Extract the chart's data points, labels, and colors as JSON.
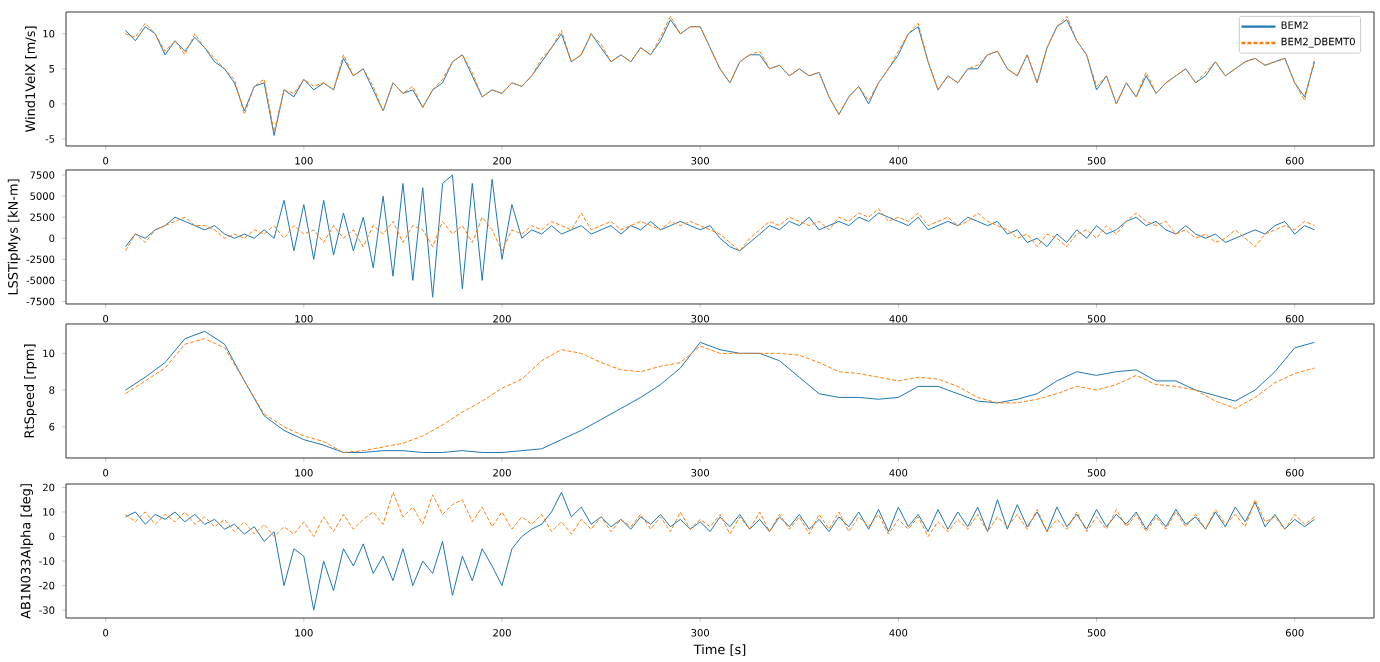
{
  "chart_data": [
    {
      "type": "line",
      "ylabel": "Wind1VelX [m/s]",
      "legend": "top right",
      "x": [
        10,
        15,
        20,
        25,
        30,
        35,
        40,
        45,
        50,
        55,
        60,
        65,
        70,
        75,
        80,
        85,
        90,
        95,
        100,
        105,
        110,
        115,
        120,
        125,
        130,
        135,
        140,
        145,
        150,
        155,
        160,
        165,
        170,
        175,
        180,
        185,
        190,
        195,
        200,
        205,
        210,
        215,
        220,
        225,
        230,
        235,
        240,
        245,
        250,
        255,
        260,
        265,
        270,
        275,
        280,
        285,
        290,
        295,
        300,
        305,
        310,
        315,
        320,
        325,
        330,
        335,
        340,
        345,
        350,
        355,
        360,
        365,
        370,
        375,
        380,
        385,
        390,
        395,
        400,
        405,
        410,
        415,
        420,
        425,
        430,
        435,
        440,
        445,
        450,
        455,
        460,
        465,
        470,
        475,
        480,
        485,
        490,
        495,
        500,
        505,
        510,
        515,
        520,
        525,
        530,
        535,
        540,
        545,
        550,
        555,
        560,
        565,
        570,
        575,
        580,
        585,
        590,
        595,
        600,
        605,
        610
      ],
      "xlim": [
        -20,
        640
      ],
      "xticks": [
        0,
        100,
        200,
        300,
        400,
        500,
        600
      ],
      "ylim": [
        -6,
        13.1
      ],
      "yticks": [
        -5,
        0,
        5,
        10
      ],
      "series": [
        {
          "name": "BEM2",
          "color": "#1f77b4",
          "line_style": "solid",
          "values": [
            10.5,
            9,
            11,
            10,
            7,
            9,
            7.5,
            9.5,
            8,
            6,
            5,
            3,
            -1,
            2.5,
            3,
            -4.5,
            2,
            1,
            3.5,
            2,
            3,
            2,
            6.5,
            4,
            5,
            2,
            -1,
            3,
            1.5,
            2,
            -0.5,
            2,
            3,
            6,
            7,
            4,
            1,
            2,
            1.5,
            3,
            2.5,
            4,
            6,
            8,
            10,
            6,
            7,
            10,
            8,
            6,
            7,
            6,
            8,
            7,
            9,
            12,
            10,
            11,
            11,
            8,
            5,
            3,
            6,
            7,
            7,
            5,
            5.5,
            4,
            5,
            4,
            4.5,
            1,
            -1.5,
            1,
            2.5,
            0,
            3,
            5,
            7,
            10,
            11,
            6,
            2,
            4,
            3,
            5,
            5,
            7,
            7.5,
            5,
            4,
            7,
            3,
            8,
            11,
            12,
            9,
            7,
            2,
            4,
            0,
            3,
            1,
            4,
            1.5,
            3,
            4,
            5,
            3,
            4,
            6,
            4,
            5,
            6,
            6.5,
            5.5,
            6,
            6.5,
            3,
            1,
            6
          ]
        },
        {
          "name": "BEM2_DBEMT0",
          "color": "#ff7f0e",
          "line_style": "dashed",
          "values": [
            10,
            9.5,
            11.5,
            10,
            7.5,
            9,
            7,
            10,
            8,
            6.5,
            5,
            3.5,
            -1.5,
            2.5,
            3.5,
            -4,
            2,
            1.5,
            3.5,
            2.5,
            3,
            2,
            7,
            4,
            5,
            2.5,
            -1,
            3,
            1.5,
            2.5,
            -0.5,
            2,
            3.5,
            6,
            7,
            4.5,
            1,
            2,
            1.5,
            3,
            2.5,
            4,
            6.5,
            8,
            10.5,
            6,
            7,
            10,
            8.5,
            6,
            7,
            6,
            8,
            7,
            9.5,
            12.5,
            10,
            11,
            11,
            8,
            5,
            3,
            6,
            7,
            7.5,
            5,
            5.5,
            4,
            5,
            4,
            4.5,
            1,
            -1.5,
            1,
            2.5,
            0.5,
            3,
            5,
            7.5,
            10,
            11.5,
            6,
            2,
            4,
            3,
            5,
            5.5,
            7,
            7.5,
            5,
            4,
            7,
            3,
            8,
            11,
            12.5,
            9,
            7,
            2.5,
            4,
            0,
            3,
            1,
            4.5,
            1.5,
            3,
            4,
            5,
            3,
            4.5,
            6,
            4,
            5,
            6,
            6.5,
            5.5,
            6,
            6.5,
            3,
            0.5,
            6.5
          ]
        }
      ]
    },
    {
      "type": "line",
      "ylabel": "LSSTipMys [kN-m]",
      "x": [
        10,
        15,
        20,
        25,
        30,
        35,
        40,
        45,
        50,
        55,
        60,
        65,
        70,
        75,
        80,
        85,
        90,
        95,
        100,
        105,
        110,
        115,
        120,
        125,
        130,
        135,
        140,
        145,
        150,
        155,
        160,
        165,
        170,
        175,
        180,
        185,
        190,
        195,
        200,
        205,
        210,
        215,
        220,
        225,
        230,
        235,
        240,
        245,
        250,
        255,
        260,
        265,
        270,
        275,
        280,
        285,
        290,
        295,
        300,
        305,
        310,
        315,
        320,
        325,
        330,
        335,
        340,
        345,
        350,
        355,
        360,
        365,
        370,
        375,
        380,
        385,
        390,
        395,
        400,
        405,
        410,
        415,
        420,
        425,
        430,
        435,
        440,
        445,
        450,
        455,
        460,
        465,
        470,
        475,
        480,
        485,
        490,
        495,
        500,
        505,
        510,
        515,
        520,
        525,
        530,
        535,
        540,
        545,
        550,
        555,
        560,
        565,
        570,
        575,
        580,
        585,
        590,
        595,
        600,
        605,
        610
      ],
      "xlim": [
        -20,
        640
      ],
      "xticks": [
        0,
        100,
        200,
        300,
        400,
        500,
        600
      ],
      "ylim": [
        -7800,
        8100
      ],
      "yticks": [
        -7500,
        -5000,
        -2500,
        0,
        2500,
        5000,
        7500
      ],
      "series": [
        {
          "color": "#1f77b4",
          "line_style": "solid",
          "values": [
            -1000,
            500,
            0,
            1000,
            1500,
            2500,
            2000,
            1500,
            1000,
            1500,
            500,
            0,
            500,
            0,
            1000,
            0,
            4500,
            -1500,
            4000,
            -2500,
            4500,
            -2000,
            3000,
            -1500,
            2500,
            -3500,
            5000,
            -4500,
            6500,
            -5000,
            6000,
            -7000,
            6500,
            7500,
            -6000,
            6500,
            -5000,
            7000,
            -2500,
            4000,
            0,
            1000,
            500,
            1500,
            500,
            1000,
            1500,
            500,
            1000,
            1500,
            500,
            1500,
            1000,
            2000,
            1000,
            1500,
            2000,
            1500,
            1000,
            1500,
            0,
            -1000,
            -1500,
            -500,
            500,
            1500,
            1000,
            2000,
            1500,
            2500,
            1000,
            1500,
            2000,
            1500,
            2500,
            2000,
            3000,
            2500,
            2000,
            1500,
            2500,
            1000,
            1500,
            2000,
            1500,
            2500,
            2000,
            1500,
            2000,
            500,
            1000,
            -500,
            0,
            -1000,
            500,
            -500,
            1000,
            0,
            1500,
            500,
            1000,
            2000,
            2500,
            1500,
            2000,
            1000,
            500,
            1500,
            500,
            0,
            500,
            -500,
            0,
            500,
            1000,
            500,
            1500,
            2000,
            500,
            1500,
            1000
          ]
        },
        {
          "color": "#ff7f0e",
          "line_style": "dashed",
          "values": [
            -1500,
            500,
            -500,
            1000,
            1500,
            2000,
            2500,
            1500,
            1500,
            1000,
            0,
            500,
            0,
            1000,
            500,
            1500,
            0,
            1500,
            500,
            1000,
            -500,
            1500,
            0,
            1000,
            -1000,
            1500,
            500,
            2000,
            -500,
            1500,
            1000,
            -1000,
            2000,
            500,
            1500,
            -500,
            2500,
            1000,
            -1500,
            1000,
            500,
            1500,
            1000,
            2000,
            1500,
            1000,
            3000,
            1000,
            1500,
            2000,
            1000,
            1500,
            2000,
            1500,
            1000,
            2000,
            1500,
            2000,
            1500,
            1000,
            500,
            -500,
            -1500,
            0,
            1000,
            2000,
            1500,
            2500,
            2000,
            1500,
            2000,
            1000,
            2500,
            2000,
            3000,
            2500,
            3500,
            2000,
            2500,
            2000,
            3000,
            1500,
            2000,
            2500,
            1500,
            2000,
            3000,
            2000,
            1500,
            1000,
            0,
            500,
            -1000,
            500,
            0,
            -1000,
            500,
            1000,
            0,
            1500,
            500,
            2000,
            3000,
            2000,
            1500,
            2000,
            500,
            1000,
            0,
            500,
            -500,
            0,
            1000,
            0,
            -1000,
            500,
            1000,
            1500,
            1000,
            2000,
            1500
          ]
        }
      ]
    },
    {
      "type": "line",
      "ylabel": "RtSpeed [rpm]",
      "x": [
        10,
        20,
        30,
        40,
        50,
        60,
        70,
        80,
        90,
        100,
        110,
        120,
        130,
        140,
        150,
        160,
        170,
        180,
        190,
        200,
        210,
        220,
        230,
        240,
        250,
        260,
        270,
        280,
        290,
        300,
        310,
        320,
        330,
        340,
        350,
        360,
        370,
        380,
        390,
        400,
        410,
        420,
        430,
        440,
        450,
        460,
        470,
        480,
        490,
        500,
        510,
        520,
        530,
        540,
        550,
        560,
        570,
        580,
        590,
        600,
        610
      ],
      "xlim": [
        -20,
        640
      ],
      "xticks": [
        0,
        100,
        200,
        300,
        400,
        500,
        600
      ],
      "ylim": [
        4.3,
        11.6
      ],
      "yticks": [
        6,
        8,
        10
      ],
      "series": [
        {
          "color": "#1f77b4",
          "line_style": "solid",
          "values": [
            8.0,
            8.7,
            9.5,
            10.8,
            11.2,
            10.5,
            8.5,
            6.6,
            5.8,
            5.3,
            5.0,
            4.6,
            4.6,
            4.7,
            4.7,
            4.6,
            4.6,
            4.7,
            4.6,
            4.6,
            4.7,
            4.8,
            5.3,
            5.8,
            6.4,
            7.0,
            7.6,
            8.3,
            9.2,
            10.6,
            10.2,
            10.0,
            10.0,
            9.6,
            8.7,
            7.8,
            7.6,
            7.6,
            7.5,
            7.6,
            8.2,
            8.2,
            7.8,
            7.4,
            7.3,
            7.5,
            7.8,
            8.5,
            9.0,
            8.8,
            9.0,
            9.1,
            8.5,
            8.5,
            8.0,
            7.7,
            7.4,
            8.0,
            9.0,
            10.3,
            10.6
          ]
        },
        {
          "color": "#ff7f0e",
          "line_style": "dashed",
          "values": [
            7.8,
            8.5,
            9.2,
            10.5,
            10.8,
            10.3,
            8.5,
            6.7,
            6.0,
            5.5,
            5.2,
            4.6,
            4.7,
            4.9,
            5.1,
            5.5,
            6.1,
            6.8,
            7.4,
            8.1,
            8.6,
            9.6,
            10.2,
            10.0,
            9.5,
            9.1,
            9.0,
            9.3,
            9.5,
            10.4,
            10.0,
            10.0,
            10.0,
            10.0,
            9.9,
            9.5,
            9.0,
            8.9,
            8.7,
            8.5,
            8.7,
            8.6,
            8.2,
            7.6,
            7.3,
            7.3,
            7.5,
            7.8,
            8.2,
            8.0,
            8.3,
            8.8,
            8.3,
            8.2,
            8.0,
            7.4,
            7.0,
            7.6,
            8.4,
            8.9,
            9.2
          ]
        }
      ]
    },
    {
      "type": "line",
      "ylabel": "AB1N033Alpha [deg]",
      "xlabel": "Time [s]",
      "x": [
        10,
        15,
        20,
        25,
        30,
        35,
        40,
        45,
        50,
        55,
        60,
        65,
        70,
        75,
        80,
        85,
        90,
        95,
        100,
        105,
        110,
        115,
        120,
        125,
        130,
        135,
        140,
        145,
        150,
        155,
        160,
        165,
        170,
        175,
        180,
        185,
        190,
        195,
        200,
        205,
        210,
        215,
        220,
        225,
        230,
        235,
        240,
        245,
        250,
        255,
        260,
        265,
        270,
        275,
        280,
        285,
        290,
        295,
        300,
        305,
        310,
        315,
        320,
        325,
        330,
        335,
        340,
        345,
        350,
        355,
        360,
        365,
        370,
        375,
        380,
        385,
        390,
        395,
        400,
        405,
        410,
        415,
        420,
        425,
        430,
        435,
        440,
        445,
        450,
        455,
        460,
        465,
        470,
        475,
        480,
        485,
        490,
        495,
        500,
        505,
        510,
        515,
        520,
        525,
        530,
        535,
        540,
        545,
        550,
        555,
        560,
        565,
        570,
        575,
        580,
        585,
        590,
        595,
        600,
        605,
        610
      ],
      "xlim": [
        -20,
        640
      ],
      "xticks": [
        0,
        100,
        200,
        300,
        400,
        500,
        600
      ],
      "ylim": [
        -33.2,
        21.4
      ],
      "yticks": [
        -30,
        -20,
        -10,
        0,
        10,
        20
      ],
      "series": [
        {
          "color": "#1f77b4",
          "line_style": "solid",
          "values": [
            8,
            10,
            5,
            9,
            7,
            10,
            6,
            9,
            5,
            7,
            3,
            5,
            1,
            4,
            -2,
            2,
            -20,
            -5,
            -8,
            -30,
            -10,
            -22,
            -5,
            -12,
            -3,
            -15,
            -8,
            -18,
            -5,
            -20,
            -10,
            -15,
            -2,
            -24,
            -8,
            -18,
            -5,
            -12,
            -20,
            -5,
            0,
            3,
            5,
            10,
            18,
            8,
            12,
            5,
            8,
            4,
            7,
            3,
            8,
            5,
            9,
            4,
            7,
            3,
            6,
            2,
            8,
            4,
            9,
            3,
            7,
            2,
            8,
            4,
            9,
            3,
            7,
            2,
            8,
            4,
            10,
            3,
            11,
            2,
            12,
            4,
            9,
            2,
            11,
            3,
            10,
            4,
            12,
            2,
            15,
            3,
            13,
            4,
            10,
            2,
            12,
            4,
            9,
            3,
            11,
            4,
            9,
            5,
            10,
            3,
            9,
            4,
            11,
            5,
            8,
            3,
            10,
            4,
            12,
            6,
            14,
            4,
            9,
            3,
            7,
            4,
            7
          ]
        },
        {
          "color": "#ff7f0e",
          "line_style": "dashed",
          "values": [
            9,
            6,
            10,
            5,
            9,
            6,
            10,
            5,
            8,
            4,
            7,
            2,
            6,
            1,
            5,
            0,
            4,
            1,
            6,
            0,
            8,
            2,
            9,
            3,
            7,
            10,
            5,
            18,
            8,
            12,
            5,
            17,
            9,
            13,
            15,
            6,
            12,
            4,
            10,
            3,
            8,
            5,
            9,
            2,
            6,
            1,
            7,
            3,
            8,
            2,
            7,
            4,
            9,
            3,
            8,
            2,
            10,
            3,
            7,
            4,
            9,
            1,
            8,
            3,
            10,
            2,
            9,
            3,
            8,
            1,
            9,
            3,
            10,
            2,
            8,
            4,
            9,
            1,
            7,
            3,
            8,
            0,
            6,
            2,
            7,
            3,
            9,
            2,
            8,
            4,
            9,
            3,
            11,
            2,
            7,
            3,
            10,
            2,
            8,
            3,
            11,
            4,
            9,
            2,
            8,
            3,
            10,
            4,
            9,
            3,
            11,
            5,
            9,
            4,
            15,
            6,
            8,
            3,
            9,
            5,
            8
          ]
        }
      ]
    }
  ]
}
